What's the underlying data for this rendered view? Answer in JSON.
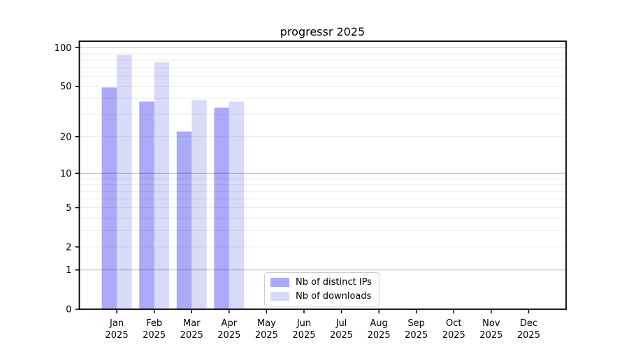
{
  "title": "progressr 2025",
  "colors": {
    "distinct_ips_bar": "#aaaaf8",
    "downloads_bar": "#d9d9f8",
    "axis": "#000000",
    "major_grid": "rgba(0,0,0,0.24)",
    "minor_grid": "rgba(0,0,0,0.08)",
    "legend_border": "#cccccc",
    "background": "#ffffff"
  },
  "chart_data": {
    "type": "bar",
    "title": "progressr 2025",
    "categories": [
      "Jan",
      "Feb",
      "Mar",
      "Apr",
      "May",
      "Jun",
      "Jul",
      "Aug",
      "Sep",
      "Oct",
      "Nov",
      "Dec"
    ],
    "year_label": "2025",
    "series": [
      {
        "name": "Nb of distinct IPs",
        "color": "#aaaaf8",
        "values": [
          49,
          38,
          22,
          34,
          null,
          null,
          null,
          null,
          null,
          null,
          null,
          null
        ]
      },
      {
        "name": "Nb of downloads",
        "color": "#d9d9f8",
        "values": [
          88,
          77,
          39,
          38,
          null,
          null,
          null,
          null,
          null,
          null,
          null,
          null
        ]
      }
    ],
    "yscale": "log1p",
    "yticks": [
      0,
      1,
      2,
      5,
      10,
      20,
      50,
      100
    ],
    "major_gridlines": [
      1,
      10,
      100
    ],
    "minor_gridlines": [
      2,
      3,
      4,
      5,
      6,
      7,
      8,
      9,
      20,
      30,
      40,
      50,
      60,
      70,
      80,
      90
    ],
    "ylim": [
      0,
      112
    ],
    "grid": "on",
    "legend_position": "lower center",
    "xlabel": "",
    "ylabel": ""
  }
}
